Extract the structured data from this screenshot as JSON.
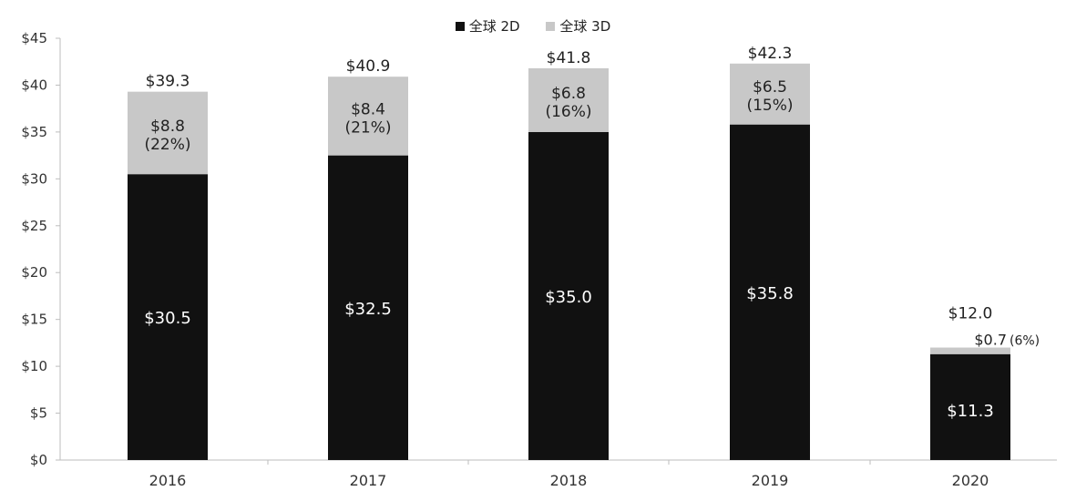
{
  "chart_data": {
    "type": "bar",
    "stacked": true,
    "categories": [
      "2016",
      "2017",
      "2018",
      "2019",
      "2020"
    ],
    "series": [
      {
        "name": "全球 2D",
        "values": [
          30.5,
          32.5,
          35.0,
          35.8,
          11.3
        ],
        "color": "#111111",
        "labels": [
          "$30.5",
          "$32.5",
          "$35.0",
          "$35.8",
          "$11.3"
        ]
      },
      {
        "name": "全球 3D",
        "values": [
          8.8,
          8.4,
          6.8,
          6.5,
          0.7
        ],
        "color": "#c8c8c8",
        "labels": [
          "$8.8",
          "$8.4",
          "$6.8",
          "$6.5",
          "$0.7"
        ],
        "share_labels": [
          "(22%)",
          "(21%)",
          "(16%)",
          "(15%)",
          "(6%)"
        ]
      }
    ],
    "totals": [
      39.3,
      40.9,
      41.8,
      42.3,
      12.0
    ],
    "total_labels": [
      "$39.3",
      "$40.9",
      "$41.8",
      "$42.3",
      "$12.0"
    ],
    "ylim": [
      0,
      45
    ],
    "yticks": [
      "$0",
      "$5",
      "$10",
      "$15",
      "$20",
      "$25",
      "$30",
      "$35",
      "$40",
      "$45"
    ],
    "grid": false,
    "legend_position": "top-center"
  }
}
